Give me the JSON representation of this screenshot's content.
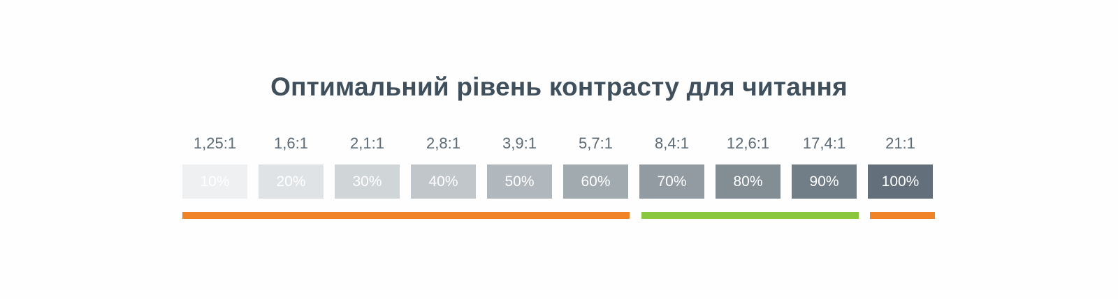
{
  "title": "Оптимальний рівень контрасту для читання",
  "levels": [
    {
      "ratio": "1,25:1",
      "label": "10%",
      "shade": "#eef0f1"
    },
    {
      "ratio": "1,6:1",
      "label": "20%",
      "shade": "#e0e3e6"
    },
    {
      "ratio": "2,1:1",
      "label": "30%",
      "shade": "#d0d5d8"
    },
    {
      "ratio": "2,8:1",
      "label": "40%",
      "shade": "#c1c6cb"
    },
    {
      "ratio": "3,9:1",
      "label": "50%",
      "shade": "#b1b8bd"
    },
    {
      "ratio": "5,7:1",
      "label": "60%",
      "shade": "#a1aaaf"
    },
    {
      "ratio": "8,4:1",
      "label": "70%",
      "shade": "#929ba2"
    },
    {
      "ratio": "12,6:1",
      "label": "80%",
      "shade": "#828d94"
    },
    {
      "ratio": "17,4:1",
      "label": "90%",
      "shade": "#727e87"
    },
    {
      "ratio": "21:1",
      "label": "100%",
      "shade": "#636f7a"
    }
  ],
  "range_bars": [
    {
      "name": "low-contrast-range",
      "color": "#f08328"
    },
    {
      "name": "optimal-contrast-range",
      "color": "#8bc63f"
    },
    {
      "name": "max-contrast-range",
      "color": "#f08328"
    }
  ]
}
